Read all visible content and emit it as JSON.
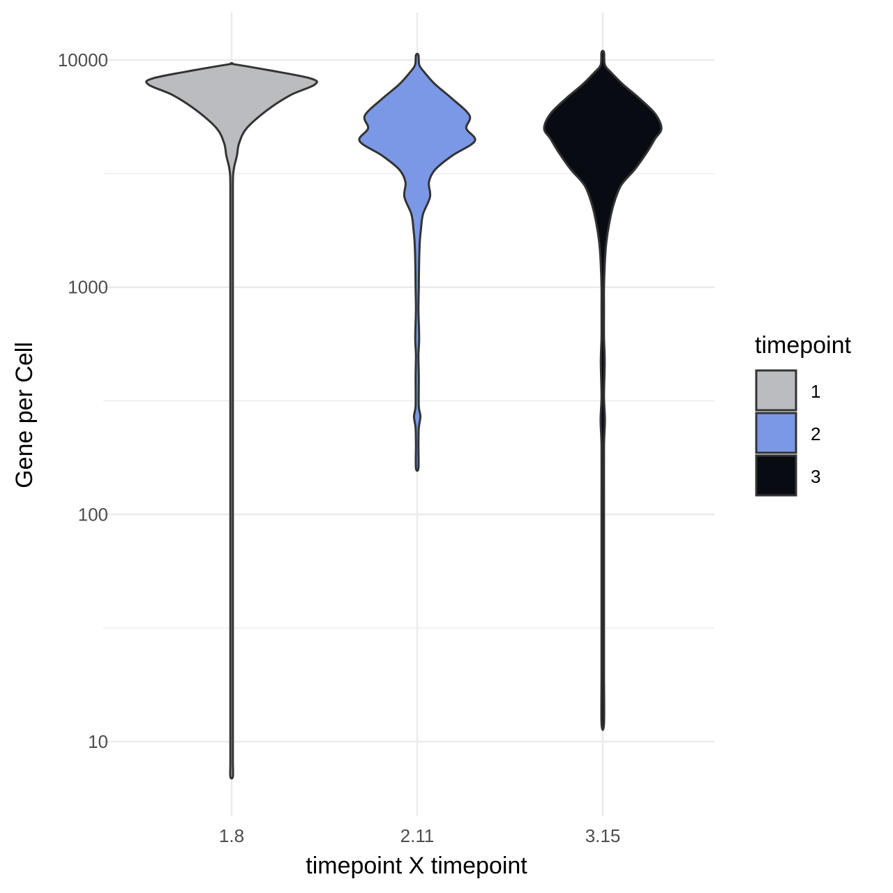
{
  "chart_data": {
    "type": "violin",
    "title": "",
    "xlabel": "timepoint X timepoint",
    "ylabel": "Gene per Cell",
    "y_scale": "log10",
    "ylim": [
      5,
      15000
    ],
    "y_ticks": [
      10,
      100,
      1000,
      10000
    ],
    "y_tick_labels": [
      "10",
      "100",
      "1000",
      "10000"
    ],
    "grid": true,
    "categories": [
      "1.8",
      "2.11",
      "3.15"
    ],
    "legend": {
      "title": "timepoint",
      "position": "right",
      "items": [
        {
          "label": "1",
          "color": "#bbbcbf"
        },
        {
          "label": "2",
          "color": "#7b98e6"
        },
        {
          "label": "3",
          "color": "#080b12"
        }
      ]
    },
    "series": [
      {
        "category": "1.8",
        "group": "1",
        "fill": "#bbbcbf",
        "min": 7,
        "max": 9600,
        "density": [
          [
            7,
            0.003
          ],
          [
            8,
            0.006
          ],
          [
            9,
            0.004
          ],
          [
            10,
            0.007
          ],
          [
            11,
            0.004
          ],
          [
            13,
            0.006
          ],
          [
            16,
            0.004
          ],
          [
            19,
            0.012
          ],
          [
            22,
            0.004
          ],
          [
            26,
            0.006
          ],
          [
            30,
            0.012
          ],
          [
            35,
            0.004
          ],
          [
            100,
            0.004
          ],
          [
            500,
            0.004
          ],
          [
            1500,
            0.005
          ],
          [
            2800,
            0.007
          ],
          [
            3300,
            0.02
          ],
          [
            3800,
            0.05
          ],
          [
            4300,
            0.07
          ],
          [
            5000,
            0.14
          ],
          [
            6000,
            0.33
          ],
          [
            7000,
            0.55
          ],
          [
            7800,
            0.78
          ],
          [
            8300,
            0.74
          ],
          [
            9000,
            0.36
          ],
          [
            9600,
            0.0
          ]
        ]
      },
      {
        "category": "2.11",
        "group": "2",
        "fill": "#7b98e6",
        "min": 160,
        "max": 10500,
        "density": [
          [
            160,
            0.004
          ],
          [
            200,
            0.012
          ],
          [
            240,
            0.015
          ],
          [
            270,
            0.03
          ],
          [
            300,
            0.015
          ],
          [
            400,
            0.015
          ],
          [
            500,
            0.012
          ],
          [
            600,
            0.018
          ],
          [
            800,
            0.012
          ],
          [
            1000,
            0.015
          ],
          [
            1300,
            0.018
          ],
          [
            1600,
            0.025
          ],
          [
            1800,
            0.035
          ],
          [
            2100,
            0.055
          ],
          [
            2500,
            0.12
          ],
          [
            2900,
            0.11
          ],
          [
            3300,
            0.17
          ],
          [
            3800,
            0.33
          ],
          [
            4400,
            0.54
          ],
          [
            5000,
            0.46
          ],
          [
            5700,
            0.49
          ],
          [
            6800,
            0.32
          ],
          [
            7800,
            0.17
          ],
          [
            8800,
            0.07
          ],
          [
            9500,
            0.02
          ],
          [
            10500,
            0.008
          ]
        ]
      },
      {
        "category": "3.15",
        "group": "3",
        "fill": "#080b12",
        "min": 12,
        "max": 10800,
        "density": [
          [
            12,
            0.003
          ],
          [
            20,
            0.004
          ],
          [
            40,
            0.004
          ],
          [
            70,
            0.008
          ],
          [
            120,
            0.005
          ],
          [
            200,
            0.008
          ],
          [
            260,
            0.02
          ],
          [
            330,
            0.008
          ],
          [
            470,
            0.018
          ],
          [
            600,
            0.008
          ],
          [
            800,
            0.012
          ],
          [
            1000,
            0.012
          ],
          [
            1300,
            0.02
          ],
          [
            1600,
            0.035
          ],
          [
            1900,
            0.06
          ],
          [
            2300,
            0.1
          ],
          [
            2800,
            0.17
          ],
          [
            3300,
            0.3
          ],
          [
            3900,
            0.41
          ],
          [
            4500,
            0.49
          ],
          [
            5000,
            0.55
          ],
          [
            5800,
            0.49
          ],
          [
            6800,
            0.34
          ],
          [
            7800,
            0.19
          ],
          [
            8800,
            0.08
          ],
          [
            9500,
            0.02
          ],
          [
            10800,
            0.005
          ]
        ]
      }
    ]
  }
}
